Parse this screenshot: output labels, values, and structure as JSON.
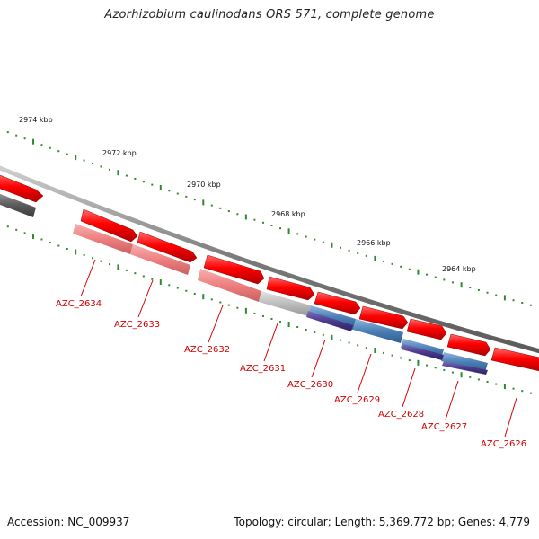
{
  "title": "Azorhizobium caulinodans ORS 571, complete genome",
  "footer": {
    "accession_label": "Accession: NC_009937",
    "topology": "Topology: circular;",
    "length": "Length: 5,369,772 bp;",
    "genes": "Genes: 4,779"
  },
  "ruler": {
    "ticks": [
      "2974 kbp",
      "2972 kbp",
      "2970 kbp",
      "2968 kbp",
      "2966 kbp",
      "2964 kbp"
    ],
    "tick_color": "#2e8b2e"
  },
  "genes": [
    {
      "label": "AZC_2634"
    },
    {
      "label": "AZC_2633"
    },
    {
      "label": "AZC_2632"
    },
    {
      "label": "AZC_2631"
    },
    {
      "label": "AZC_2630"
    },
    {
      "label": "AZC_2629"
    },
    {
      "label": "AZC_2628"
    },
    {
      "label": "AZC_2627"
    },
    {
      "label": "AZC_2626"
    }
  ],
  "colors": {
    "forward_gene": "#ff0000",
    "reverse_gene": "#f08080",
    "gray_feature": "#bdbdbd",
    "blue_feature": "#4a7fb5",
    "purple_feature": "#4b3a8c",
    "backbone": "#8a8a8a",
    "label": "#cc0000"
  }
}
